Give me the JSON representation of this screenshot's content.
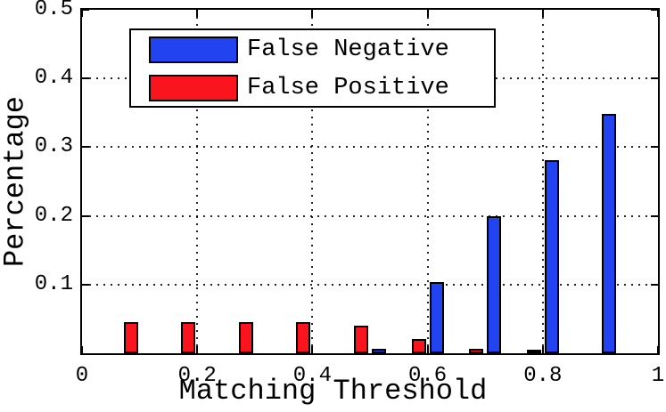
{
  "figure": {
    "background": "#ffffff",
    "axis_color": "#000000",
    "grid_color": "#000000"
  },
  "chart_data": {
    "type": "bar",
    "title": "",
    "xlabel": "Matching Threshold",
    "ylabel": "Percentage",
    "xlim": [
      0,
      1
    ],
    "ylim": [
      0,
      0.5
    ],
    "x_ticks": [
      0,
      0.2,
      0.4,
      0.6,
      0.8,
      1
    ],
    "x_tick_labels": [
      "0",
      "0.2",
      "0.4",
      "0.6",
      "0.8",
      "1"
    ],
    "y_ticks": [
      0.1,
      0.2,
      0.3,
      0.4,
      0.5
    ],
    "y_tick_labels": [
      "0.1",
      "0.2",
      "0.3",
      "0.4",
      "0.5"
    ],
    "grid": true,
    "grid_style": "dotted",
    "legend_position": "upper-left-inside",
    "categories": [
      0.1,
      0.2,
      0.3,
      0.4,
      0.5,
      0.6,
      0.7,
      0.8,
      0.9
    ],
    "bar_order": [
      "False Positive",
      "False Negative"
    ],
    "series": [
      {
        "name": "False Negative",
        "color": "#2244f0",
        "values": [
          0,
          0,
          0,
          0,
          0.006,
          0.103,
          0.199,
          0.281,
          0.348
        ]
      },
      {
        "name": "False Positive",
        "color": "#fa141e",
        "values": [
          0.045,
          0.045,
          0.045,
          0.045,
          0.04,
          0.021,
          0.007,
          0.002,
          0
        ]
      }
    ]
  }
}
